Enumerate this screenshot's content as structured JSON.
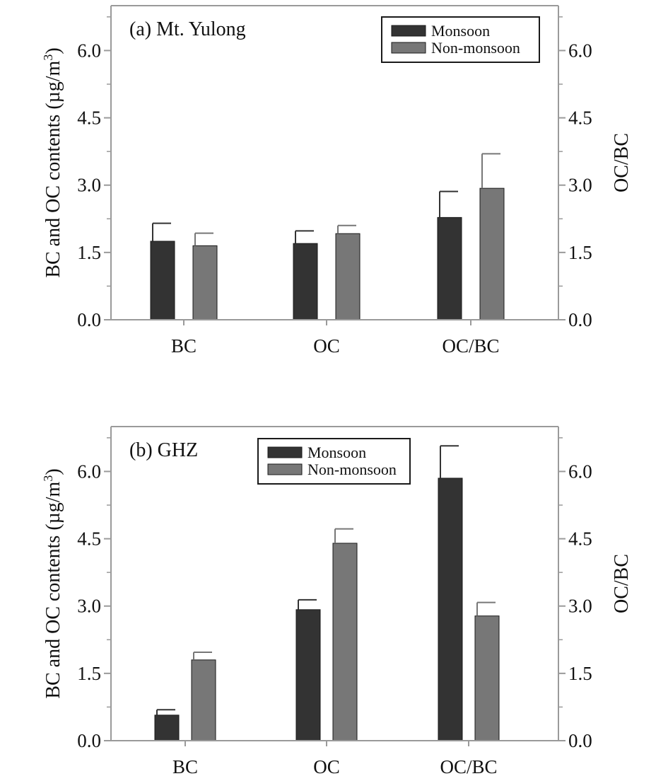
{
  "colors": {
    "monsoon": "#333333",
    "non_monsoon": "#777777",
    "axis_frame": "#9a9a9a",
    "text": "#111111"
  },
  "chart_data": [
    {
      "type": "bar",
      "title": "(a) Mt. Yulong",
      "categories": [
        "BC",
        "OC",
        "OC/BC"
      ],
      "series": [
        {
          "name": "Monsoon",
          "values": [
            1.75,
            1.7,
            2.28
          ],
          "errors": [
            0.4,
            0.28,
            0.58
          ]
        },
        {
          "name": "Non-monsoon",
          "values": [
            1.65,
            1.92,
            2.93
          ],
          "errors": [
            0.28,
            0.18,
            0.77
          ]
        }
      ],
      "ylabel": "BC and OC contents (µg/m³)",
      "ylabel_main": "BC and OC contents (µg/m",
      "ylabel_sup": "3",
      "ylabel_close": ")",
      "y2label": "OC/BC",
      "ylim": [
        0,
        7.0
      ],
      "yticks": [
        0.0,
        1.5,
        3.0,
        4.5,
        6.0
      ],
      "ytick_labels": [
        "0.0",
        "1.5",
        "3.0",
        "4.5",
        "6.0"
      ],
      "y2ticks": [
        0.0,
        1.5,
        3.0,
        4.5,
        6.0
      ],
      "y2tick_labels": [
        "0.0",
        "1.5",
        "3.0",
        "4.5",
        "6.0"
      ],
      "grid": false,
      "legend_position": "top-right"
    },
    {
      "type": "bar",
      "title": "(b) GHZ",
      "categories": [
        "BC",
        "OC",
        "OC/BC"
      ],
      "series": [
        {
          "name": "Monsoon",
          "values": [
            0.57,
            2.92,
            5.85
          ],
          "errors": [
            0.12,
            0.22,
            0.72
          ]
        },
        {
          "name": "Non-monsoon",
          "values": [
            1.8,
            4.4,
            2.78
          ],
          "errors": [
            0.17,
            0.32,
            0.3
          ]
        }
      ],
      "ylabel": "BC and OC contents (µg/m³)",
      "ylabel_main": "BC and OC contents (µg/m",
      "ylabel_sup": "3",
      "ylabel_close": ")",
      "y2label": "OC/BC",
      "ylim": [
        0,
        7.0
      ],
      "yticks": [
        0.0,
        1.5,
        3.0,
        4.5,
        6.0
      ],
      "ytick_labels": [
        "0.0",
        "1.5",
        "3.0",
        "4.5",
        "6.0"
      ],
      "y2ticks": [
        0.0,
        1.5,
        3.0,
        4.5,
        6.0
      ],
      "y2tick_labels": [
        "0.0",
        "1.5",
        "3.0",
        "4.5",
        "6.0"
      ],
      "grid": false,
      "legend_position": "top-center"
    }
  ]
}
